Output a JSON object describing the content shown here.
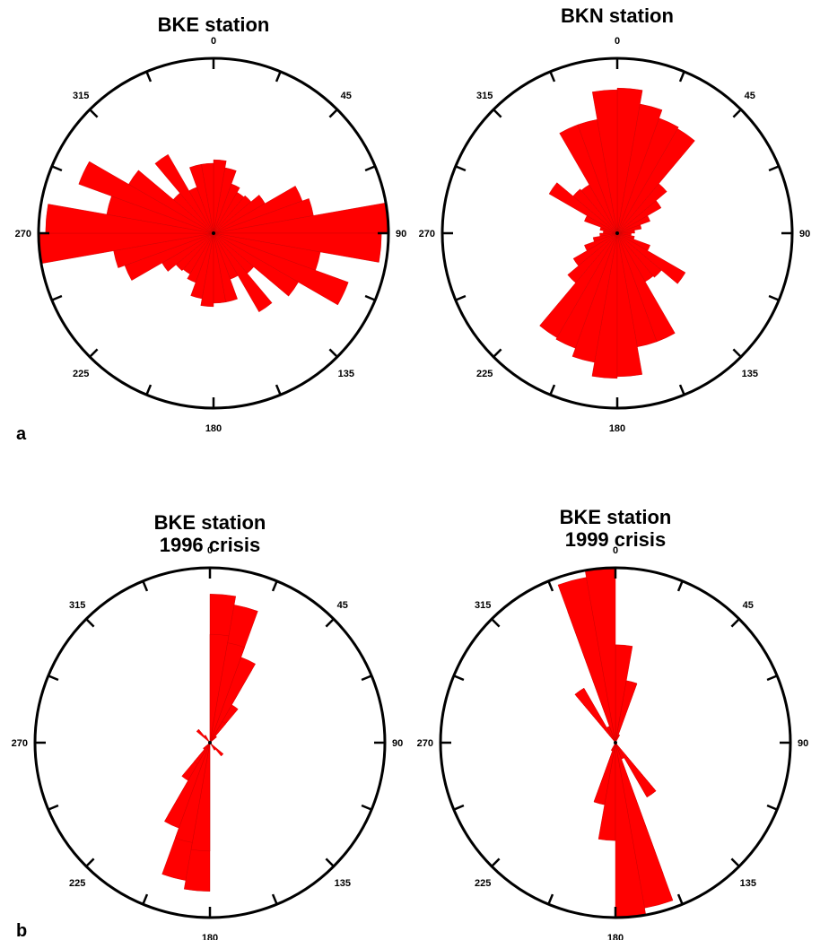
{
  "panel_labels": [
    "a",
    "b"
  ],
  "tick_label_angles": [
    0,
    45,
    90,
    135,
    180,
    225,
    270,
    315
  ],
  "chart_data": [
    {
      "type": "rose",
      "panel": "a",
      "title": [
        "BKE station"
      ],
      "bin_width_deg": 10,
      "bidirectional": true,
      "bars": [
        {
          "start": 0,
          "end": 10,
          "r": 0.42
        },
        {
          "start": 10,
          "end": 20,
          "r": 0.38
        },
        {
          "start": 20,
          "end": 30,
          "r": 0.3
        },
        {
          "start": 30,
          "end": 40,
          "r": 0.27
        },
        {
          "start": 40,
          "end": 50,
          "r": 0.28
        },
        {
          "start": 50,
          "end": 60,
          "r": 0.34
        },
        {
          "start": 60,
          "end": 70,
          "r": 0.54
        },
        {
          "start": 70,
          "end": 80,
          "r": 0.58
        },
        {
          "start": 80,
          "end": 90,
          "r": 1.0
        },
        {
          "start": 90,
          "end": 100,
          "r": 0.96
        },
        {
          "start": 100,
          "end": 110,
          "r": 0.62
        },
        {
          "start": 110,
          "end": 120,
          "r": 0.82
        },
        {
          "start": 120,
          "end": 130,
          "r": 0.56
        },
        {
          "start": 130,
          "end": 140,
          "r": 0.3
        },
        {
          "start": 140,
          "end": 150,
          "r": 0.52
        },
        {
          "start": 150,
          "end": 160,
          "r": 0.28
        },
        {
          "start": 160,
          "end": 170,
          "r": 0.4
        },
        {
          "start": 170,
          "end": 180,
          "r": 0.4
        }
      ]
    },
    {
      "type": "rose",
      "panel": "a",
      "title": [
        "BKN station"
      ],
      "bin_width_deg": 10,
      "bidirectional": true,
      "bars": [
        {
          "start": 0,
          "end": 10,
          "r": 0.83
        },
        {
          "start": 10,
          "end": 20,
          "r": 0.75
        },
        {
          "start": 20,
          "end": 30,
          "r": 0.7
        },
        {
          "start": 30,
          "end": 40,
          "r": 0.69
        },
        {
          "start": 40,
          "end": 50,
          "r": 0.37
        },
        {
          "start": 50,
          "end": 60,
          "r": 0.29
        },
        {
          "start": 60,
          "end": 70,
          "r": 0.2
        },
        {
          "start": 70,
          "end": 80,
          "r": 0.14
        },
        {
          "start": 80,
          "end": 90,
          "r": 0.1
        },
        {
          "start": 90,
          "end": 100,
          "r": 0.08
        },
        {
          "start": 100,
          "end": 110,
          "r": 0.1
        },
        {
          "start": 110,
          "end": 120,
          "r": 0.2
        },
        {
          "start": 120,
          "end": 130,
          "r": 0.45
        },
        {
          "start": 130,
          "end": 140,
          "r": 0.33
        },
        {
          "start": 140,
          "end": 150,
          "r": 0.32
        },
        {
          "start": 150,
          "end": 160,
          "r": 0.66
        },
        {
          "start": 160,
          "end": 170,
          "r": 0.66
        },
        {
          "start": 170,
          "end": 180,
          "r": 0.82
        }
      ]
    },
    {
      "type": "rose",
      "panel": "b",
      "title": [
        "BKE station",
        "1996 crisis"
      ],
      "bin_width_deg": 10,
      "bidirectional": true,
      "bars": [
        {
          "start": 0,
          "end": 10,
          "r": 0.85
        },
        {
          "start": 10,
          "end": 20,
          "r": 0.8
        },
        {
          "start": 20,
          "end": 30,
          "r": 0.48
        },
        {
          "start": 30,
          "end": 40,
          "r": 0.25
        },
        {
          "start": 40,
          "end": 50,
          "r": 0.05
        },
        {
          "start": 180,
          "end": 190,
          "r": 0.62
        },
        {
          "start": 190,
          "end": 200,
          "r": 0.58
        },
        {
          "start": 200,
          "end": 210,
          "r": 0.52
        },
        {
          "start": 210,
          "end": 220,
          "r": 0.14
        },
        {
          "start": 220,
          "end": 230,
          "r": 0.05
        },
        {
          "start": 130,
          "end": 140,
          "r": 0.1
        },
        {
          "start": 320,
          "end": 330,
          "r": 0.05
        }
      ]
    },
    {
      "type": "rose",
      "panel": "b",
      "title": [
        "BKE station",
        "1999 crisis"
      ],
      "bin_width_deg": 10,
      "bidirectional": true,
      "bars": [
        {
          "start": 0,
          "end": 10,
          "r": 0.56
        },
        {
          "start": 10,
          "end": 20,
          "r": 0.36
        },
        {
          "start": 140,
          "end": 150,
          "r": 0.36
        },
        {
          "start": 150,
          "end": 160,
          "r": 0.1
        },
        {
          "start": 160,
          "end": 170,
          "r": 0.8
        },
        {
          "start": 170,
          "end": 180,
          "r": 0.56
        },
        {
          "start": 340,
          "end": 350,
          "r": 0.96
        },
        {
          "start": 350,
          "end": 360,
          "r": 1.0
        },
        {
          "start": 320,
          "end": 330,
          "r": 0.36
        },
        {
          "start": 190,
          "end": 200,
          "r": 0.36
        },
        {
          "start": 200,
          "end": 210,
          "r": 0.05
        }
      ]
    }
  ],
  "colors": {
    "bar": "#ff0000",
    "axis": "#000000"
  }
}
